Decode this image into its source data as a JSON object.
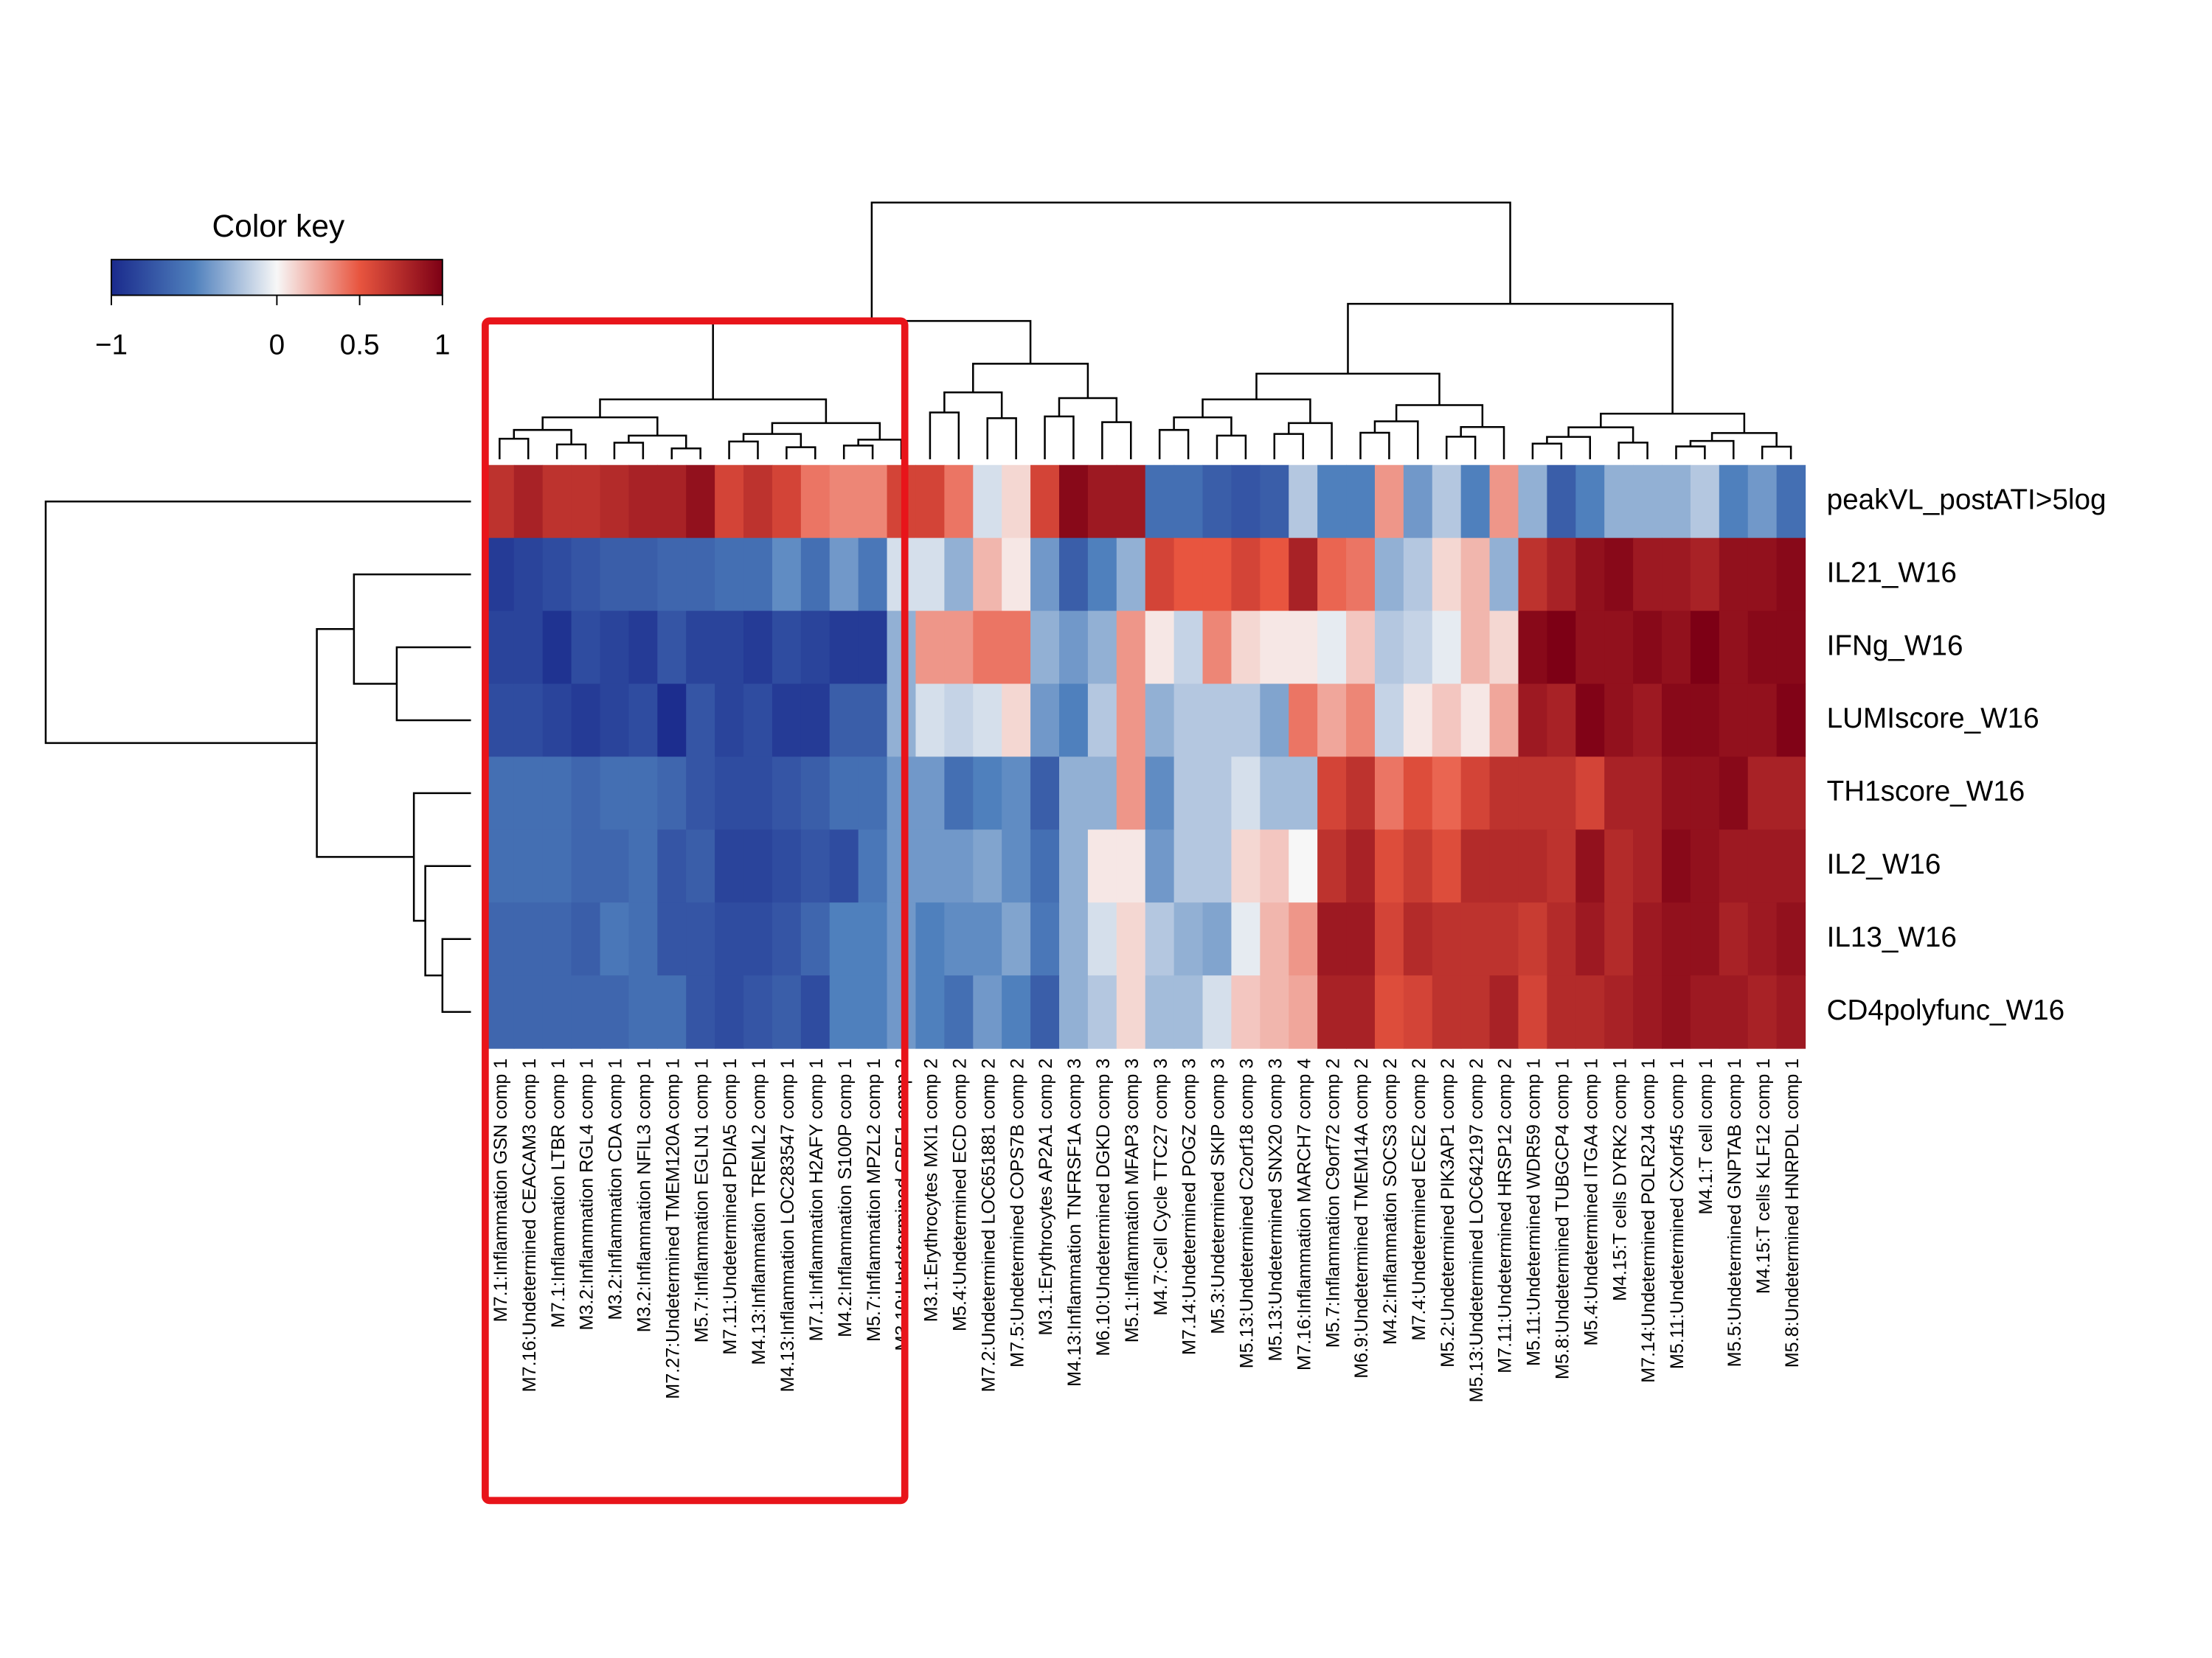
{
  "chart_data": {
    "type": "heatmap",
    "legend_title": "Color key",
    "zlim": [
      -1,
      1
    ],
    "zticks": [
      {
        "value": -1,
        "label": "−1"
      },
      0,
      0.5,
      1
    ],
    "colors": [
      "#1a2a8c",
      "#4f80bd",
      "#f7f7f7",
      "#e8553f",
      "#7d0015"
    ],
    "rows": [
      "peakVL_postATI>5log",
      "IL21_W16",
      "IFNg_W16",
      "LUMIscore_W16",
      "TH1score_W16",
      "IL2_W16",
      "IL13_W16",
      "CD4polyfunc_W16"
    ],
    "columns": [
      "M7.1:Inflammation GSN comp 1",
      "M7.16:Undetermined CEACAM3 comp 1",
      "M7.1:Inflammation LTBR comp 1",
      "M3.2:Inflammation RGL4 comp 1",
      "M3.2:Inflammation CDA comp 1",
      "M3.2:Inflammation NFIL3 comp 1",
      "M7.27:Undetermined TMEM120A comp 1",
      "M5.7:Inflammation EGLN1 comp 1",
      "M7.11:Undetermined PDIA5 comp 1",
      "M4.13:Inflammation TREML2 comp 1",
      "M4.13:Inflammation LOC283547 comp 1",
      "M7.1:Inflammation H2AFY comp 1",
      "M4.2:Inflammation S100P comp 1",
      "M5.7:Inflammation MPZL2 comp 1",
      "M3.10:Undetermined GBF1 comp 2",
      "M3.1:Erythrocytes MXI1 comp 2",
      "M5.4:Undetermined ECD comp 2",
      "M7.2:Undetermined LOC651881 comp 2",
      "M7.5:Undetermined COPS7B comp 2",
      "M3.1:Erythrocytes AP2A1 comp 2",
      "M4.13:Inflammation TNFRSF1A comp 3",
      "M6.10:Undetermined DGKD comp 3",
      "M5.1:Inflammation MFAP3 comp 3",
      "M4.7:Cell Cycle TTC27 comp 3",
      "M7.14:Undetermined POGZ comp 3",
      "M5.3:Undetermined SKIP comp 3",
      "M5.13:Undetermined C2orf18 comp 3",
      "M5.13:Undetermined SNX20 comp 3",
      "M7.16:Inflammation MARCH7 comp 4",
      "M5.7:Inflammation C9orf72 comp 2",
      "M6.9:Undetermined TMEM14A comp 2",
      "M4.2:Inflammation SOCS3 comp 2",
      "M7.4:Undetermined ECE2 comp 2",
      "M5.2:Undetermined PIK3AP1 comp 2",
      "M5.13:Undetermined LOC642197 comp 2",
      "M7.11:Undetermined HRSP12 comp 2",
      "M5.11:Undetermined WDR59 comp 1",
      "M5.8:Undetermined TUBGCP4 comp 1",
      "M5.4:Undetermined ITGA4 comp 1",
      "M4.15:T cells DYRK2 comp 1",
      "M7.14:Undetermined POLR2J4 comp 1",
      "M5.11:Undetermined CXorf45 comp 1",
      "M4.1:T cell  comp 1",
      "M5.5:Undetermined GNPTAB comp 1",
      "M4.15:T cells KLF12 comp 1",
      "M5.8:Undetermined HNRPDL comp 1"
    ],
    "values": [
      [
        0.7,
        0.8,
        0.7,
        0.7,
        0.75,
        0.8,
        0.8,
        0.9,
        0.6,
        0.7,
        0.6,
        0.4,
        0.35,
        0.35,
        0.6,
        0.6,
        0.4,
        -0.1,
        0.1,
        0.6,
        0.95,
        0.85,
        0.85,
        -0.6,
        -0.6,
        -0.7,
        -0.75,
        -0.7,
        -0.2,
        -0.5,
        -0.5,
        0.3,
        -0.4,
        -0.2,
        -0.5,
        0.3,
        -0.3,
        -0.7,
        -0.5,
        -0.3,
        -0.3,
        -0.3,
        -0.2,
        -0.5,
        -0.4,
        -0.6
      ],
      [
        -0.9,
        -0.85,
        -0.8,
        -0.75,
        -0.7,
        -0.7,
        -0.65,
        -0.65,
        -0.6,
        -0.6,
        -0.45,
        -0.6,
        -0.4,
        -0.55,
        -0.1,
        -0.1,
        -0.3,
        0.2,
        0.05,
        -0.4,
        -0.7,
        -0.5,
        -0.3,
        0.6,
        0.5,
        0.5,
        0.6,
        0.5,
        0.8,
        0.45,
        0.4,
        -0.3,
        -0.2,
        0.1,
        0.2,
        -0.3,
        0.7,
        0.8,
        0.9,
        0.95,
        0.85,
        0.85,
        0.8,
        0.9,
        0.9,
        0.95
      ],
      [
        -0.85,
        -0.85,
        -0.95,
        -0.8,
        -0.85,
        -0.9,
        -0.75,
        -0.85,
        -0.85,
        -0.9,
        -0.8,
        -0.85,
        -0.9,
        -0.9,
        -0.3,
        0.3,
        0.3,
        0.4,
        0.4,
        -0.3,
        -0.4,
        -0.3,
        0.3,
        0.05,
        -0.15,
        0.35,
        0.1,
        0.05,
        0.05,
        -0.05,
        0.15,
        -0.2,
        -0.15,
        -0.05,
        0.2,
        0.1,
        0.95,
        1,
        0.9,
        0.9,
        0.95,
        0.9,
        1,
        0.9,
        0.95,
        0.95
      ],
      [
        -0.8,
        -0.8,
        -0.85,
        -0.9,
        -0.85,
        -0.8,
        -0.98,
        -0.75,
        -0.85,
        -0.8,
        -0.9,
        -0.9,
        -0.7,
        -0.7,
        -0.3,
        -0.1,
        -0.15,
        -0.1,
        0.1,
        -0.4,
        -0.5,
        -0.2,
        0.3,
        -0.3,
        -0.2,
        -0.2,
        -0.2,
        -0.35,
        0.4,
        0.25,
        0.35,
        -0.15,
        0.05,
        0.15,
        0.05,
        0.25,
        0.85,
        0.8,
        0.98,
        0.9,
        0.85,
        0.95,
        0.95,
        0.9,
        0.9,
        0.98
      ],
      [
        -0.6,
        -0.6,
        -0.6,
        -0.65,
        -0.6,
        -0.6,
        -0.65,
        -0.75,
        -0.8,
        -0.8,
        -0.75,
        -0.7,
        -0.6,
        -0.6,
        -0.4,
        -0.4,
        -0.6,
        -0.5,
        -0.45,
        -0.7,
        -0.3,
        -0.3,
        0.3,
        -0.45,
        -0.2,
        -0.2,
        -0.1,
        -0.25,
        -0.25,
        0.6,
        0.7,
        0.4,
        0.55,
        0.45,
        0.6,
        0.7,
        0.7,
        0.7,
        0.6,
        0.8,
        0.8,
        0.9,
        0.9,
        0.95,
        0.8,
        0.8
      ],
      [
        -0.6,
        -0.6,
        -0.6,
        -0.65,
        -0.65,
        -0.6,
        -0.75,
        -0.7,
        -0.85,
        -0.85,
        -0.8,
        -0.75,
        -0.8,
        -0.55,
        -0.4,
        -0.4,
        -0.4,
        -0.35,
        -0.45,
        -0.6,
        -0.3,
        0.05,
        0.05,
        -0.4,
        -0.2,
        -0.2,
        0.1,
        0.15,
        0.0,
        0.7,
        0.8,
        0.55,
        0.65,
        0.55,
        0.75,
        0.75,
        0.75,
        0.7,
        0.9,
        0.75,
        0.8,
        0.95,
        0.9,
        0.85,
        0.85,
        0.85
      ],
      [
        -0.65,
        -0.65,
        -0.65,
        -0.7,
        -0.55,
        -0.6,
        -0.75,
        -0.75,
        -0.8,
        -0.8,
        -0.75,
        -0.65,
        -0.5,
        -0.5,
        -0.4,
        -0.5,
        -0.45,
        -0.45,
        -0.35,
        -0.55,
        -0.3,
        -0.1,
        0.1,
        -0.2,
        -0.3,
        -0.35,
        -0.05,
        0.2,
        0.3,
        0.85,
        0.85,
        0.6,
        0.75,
        0.7,
        0.7,
        0.7,
        0.65,
        0.75,
        0.85,
        0.75,
        0.85,
        0.9,
        0.9,
        0.8,
        0.85,
        0.9
      ],
      [
        -0.65,
        -0.65,
        -0.65,
        -0.65,
        -0.65,
        -0.6,
        -0.6,
        -0.75,
        -0.8,
        -0.75,
        -0.7,
        -0.8,
        -0.5,
        -0.5,
        -0.4,
        -0.5,
        -0.6,
        -0.4,
        -0.5,
        -0.7,
        -0.3,
        -0.2,
        0.1,
        -0.25,
        -0.25,
        -0.1,
        0.15,
        0.2,
        0.25,
        0.8,
        0.8,
        0.55,
        0.6,
        0.7,
        0.7,
        0.8,
        0.6,
        0.75,
        0.75,
        0.8,
        0.85,
        0.9,
        0.85,
        0.85,
        0.8,
        0.85
      ]
    ]
  }
}
